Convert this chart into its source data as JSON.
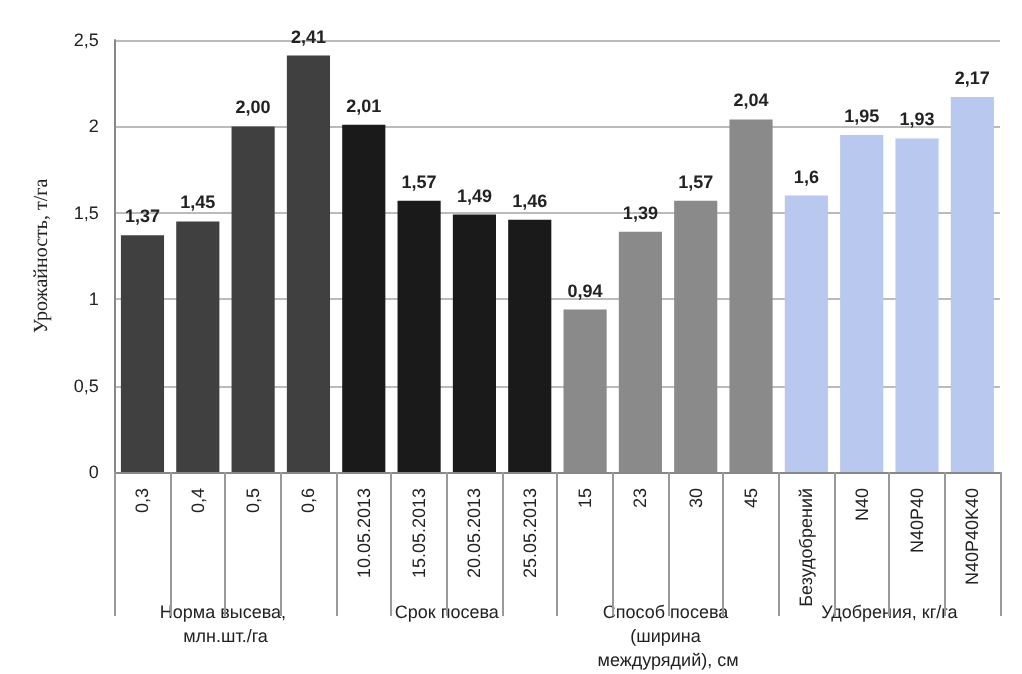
{
  "chart_data": {
    "type": "bar",
    "ylabel": "Урожайность, т/га",
    "stacked": true,
    "categories": [
      "0,3",
      "0,4",
      "0,5",
      "0,6",
      "10.05.2013",
      "15.05.2013",
      "20.05.2013",
      "25.05.2013",
      "15",
      "23",
      "30",
      "45",
      "Безудобрений",
      "N40",
      "N40P40",
      "N40P40K40"
    ],
    "series": [
      {
        "name": "Норма высева, млн.шт./га",
        "color": "#404040",
        "values": [
          1.37,
          1.45,
          2.0,
          2.41,
          null,
          null,
          null,
          null,
          null,
          null,
          null,
          null,
          null,
          null,
          null,
          null
        ],
        "value_labels": [
          "1,37",
          "1,45",
          "2,00",
          "2,41",
          null,
          null,
          null,
          null,
          null,
          null,
          null,
          null,
          null,
          null,
          null,
          null
        ]
      },
      {
        "name": "Срок посева",
        "color": "#1a1a1a",
        "values": [
          null,
          null,
          null,
          null,
          2.01,
          1.57,
          1.49,
          1.46,
          null,
          null,
          null,
          null,
          null,
          null,
          null,
          null
        ],
        "value_labels": [
          null,
          null,
          null,
          null,
          "2,01",
          "1,57",
          "1,49",
          "1,46",
          null,
          null,
          null,
          null,
          null,
          null,
          null,
          null
        ]
      },
      {
        "name": "Способ посева (ширина междурядий), см",
        "color": "#8a8a8a",
        "values": [
          null,
          null,
          null,
          null,
          null,
          null,
          null,
          null,
          0.94,
          1.39,
          1.57,
          2.04,
          null,
          null,
          null,
          null
        ],
        "value_labels": [
          null,
          null,
          null,
          null,
          null,
          null,
          null,
          null,
          "0,94",
          "1,39",
          "1,57",
          "2,04",
          null,
          null,
          null,
          null
        ]
      },
      {
        "name": "Удобрения, кг/га",
        "color": "#b9c8ee",
        "values": [
          null,
          null,
          null,
          null,
          null,
          null,
          null,
          null,
          null,
          null,
          null,
          null,
          1.6,
          1.95,
          1.93,
          2.17
        ],
        "value_labels": [
          null,
          null,
          null,
          null,
          null,
          null,
          null,
          null,
          null,
          null,
          null,
          null,
          "1,6",
          "1,95",
          "1,93",
          "2,17"
        ]
      }
    ],
    "ylim": [
      0,
      2.5
    ],
    "yticks": [
      0,
      {
        "value": 0.5,
        "label": "0,5"
      },
      1,
      {
        "value": 1.5,
        "label": "1,5"
      },
      2,
      {
        "value": 2.5,
        "label": "2,5"
      }
    ],
    "grid": "y",
    "legend": false
  }
}
